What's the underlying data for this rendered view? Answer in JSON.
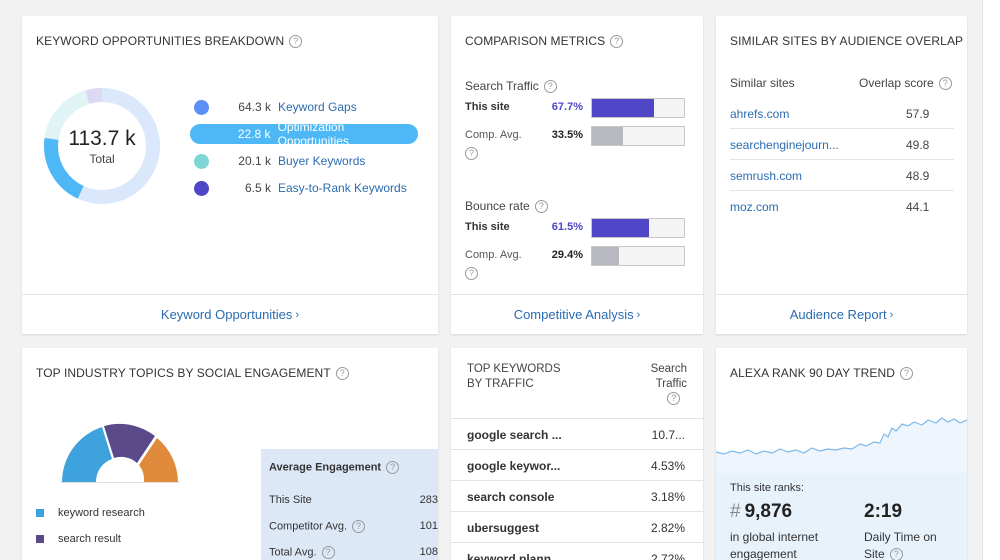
{
  "keyword_card": {
    "title": "KEYWORD OPPORTUNITIES BREAKDOWN",
    "total_value": "113.7 k",
    "total_label": "Total",
    "items": [
      {
        "value": "64.3 k",
        "label": "Keyword Gaps",
        "color": "#5b8ff9"
      },
      {
        "value": "22.8 k",
        "label": "Optimization Opportunities",
        "color": "#4db8f5"
      },
      {
        "value": "20.1 k",
        "label": "Buyer Keywords",
        "color": "#7fd6d6"
      },
      {
        "value": "6.5 k",
        "label": "Easy-to-Rank Keywords",
        "color": "#4f46c8"
      }
    ],
    "footer_link": "Keyword Opportunities"
  },
  "comparison_card": {
    "title": "COMPARISON METRICS",
    "search_traffic_label": "Search Traffic",
    "bounce_rate_label": "Bounce rate",
    "this_site_label": "This site",
    "comp_avg_label": "Comp. Avg.",
    "search_this_site": "67.7%",
    "search_this_site_fraction": 0.677,
    "search_comp_avg": "33.5%",
    "search_comp_avg_fraction": 0.335,
    "bounce_this_site": "61.5%",
    "bounce_this_site_fraction": 0.615,
    "bounce_comp_avg": "29.4%",
    "bounce_comp_avg_fraction": 0.294,
    "footer_link": "Competitive Analysis"
  },
  "similar_card": {
    "title": "SIMILAR SITES BY AUDIENCE OVERLAP",
    "col_site": "Similar sites",
    "col_score": "Overlap score",
    "rows": [
      {
        "site": "ahrefs.com",
        "score": "57.9"
      },
      {
        "site": "searchenginejourn...",
        "score": "49.8"
      },
      {
        "site": "semrush.com",
        "score": "48.9"
      },
      {
        "site": "moz.com",
        "score": "44.1"
      }
    ],
    "footer_link": "Audience Report"
  },
  "topics_card": {
    "title": "TOP INDUSTRY TOPICS BY SOCIAL ENGAGEMENT",
    "legend": [
      {
        "label": "keyword research",
        "color": "#3ea3dc"
      },
      {
        "label": "search result",
        "color": "#5a4a8a"
      }
    ],
    "engagement_title": "Average Engagement",
    "engagement_rows": [
      {
        "label": "This Site",
        "value": "283"
      },
      {
        "label": "Competitor Avg.",
        "value": "101"
      },
      {
        "label": "Total Avg.",
        "value": "108"
      }
    ]
  },
  "keywords_card": {
    "title_line1": "TOP KEYWORDS",
    "title_line2": "BY TRAFFIC",
    "col_traffic_line1": "Search",
    "col_traffic_line2": "Traffic",
    "rows": [
      {
        "keyword": "google search ...",
        "traffic": "10.7..."
      },
      {
        "keyword": "google keywor...",
        "traffic": "4.53%"
      },
      {
        "keyword": "search console",
        "traffic": "3.18%"
      },
      {
        "keyword": "ubersuggest",
        "traffic": "2.82%"
      },
      {
        "keyword": "keyword plann...",
        "traffic": "2.72%"
      }
    ]
  },
  "alexa_card": {
    "title": "ALEXA RANK 90 DAY TREND",
    "ranks_label": "This site ranks:",
    "rank_hash": "#",
    "rank_value": "9,876",
    "rank_desc": "in global internet engagement",
    "time_value": "2:19",
    "time_desc": "Daily Time on Site"
  },
  "colors": {
    "bar_this_site": "#4f46c8",
    "bar_comp_avg": "#b8b8c0",
    "link": "#2b6cb0",
    "trend_line": "#7bb8e8"
  }
}
